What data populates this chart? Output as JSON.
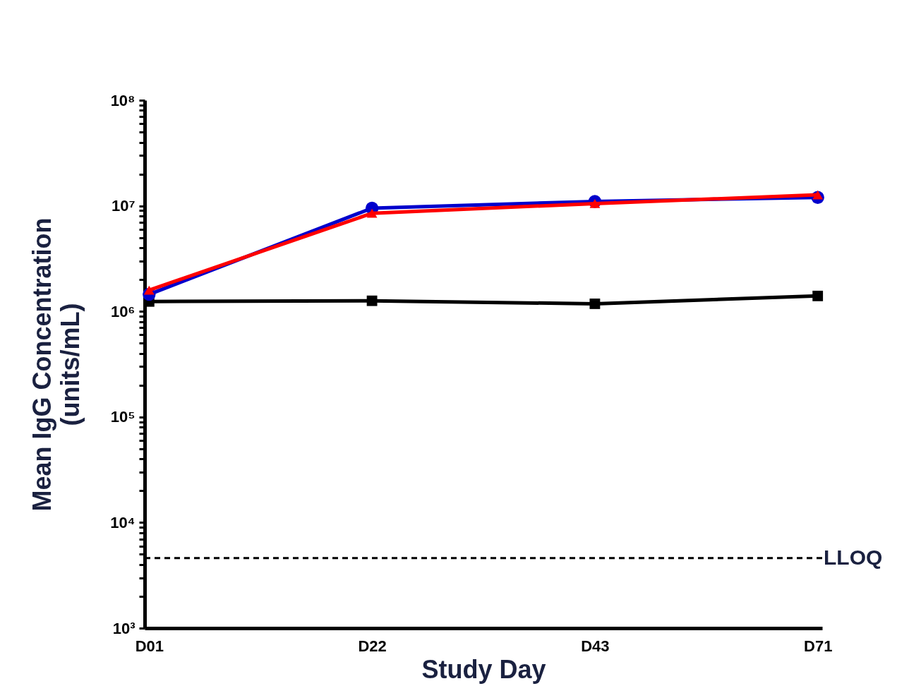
{
  "chart_data": {
    "type": "line",
    "xlabel": "Study Day",
    "ylabel": "Mean IgG Concentration\n(units/mL)",
    "categories": [
      "D01",
      "D22",
      "D43",
      "D71"
    ],
    "log": true,
    "ylim": [
      1000,
      100000000
    ],
    "yticks": [
      {
        "value": 1000,
        "label": "10³"
      },
      {
        "value": 2000,
        "label": null
      },
      {
        "value": 3000,
        "label": null
      },
      {
        "value": 4000,
        "label": null
      },
      {
        "value": 5000,
        "label": null
      },
      {
        "value": 6000,
        "label": null
      },
      {
        "value": 7000,
        "label": null
      },
      {
        "value": 8000,
        "label": null
      },
      {
        "value": 9000,
        "label": null
      },
      {
        "value": 10000,
        "label": "10⁴"
      },
      {
        "value": 20000,
        "label": null
      },
      {
        "value": 30000,
        "label": null
      },
      {
        "value": 40000,
        "label": null
      },
      {
        "value": 50000,
        "label": null
      },
      {
        "value": 60000,
        "label": null
      },
      {
        "value": 70000,
        "label": null
      },
      {
        "value": 80000,
        "label": null
      },
      {
        "value": 90000,
        "label": null
      },
      {
        "value": 100000,
        "label": "10⁵"
      },
      {
        "value": 200000,
        "label": null
      },
      {
        "value": 300000,
        "label": null
      },
      {
        "value": 400000,
        "label": null
      },
      {
        "value": 500000,
        "label": null
      },
      {
        "value": 600000,
        "label": null
      },
      {
        "value": 700000,
        "label": null
      },
      {
        "value": 800000,
        "label": null
      },
      {
        "value": 900000,
        "label": null
      },
      {
        "value": 1000000,
        "label": "10⁶"
      },
      {
        "value": 2000000,
        "label": null
      },
      {
        "value": 3000000,
        "label": null
      },
      {
        "value": 4000000,
        "label": null
      },
      {
        "value": 5000000,
        "label": null
      },
      {
        "value": 6000000,
        "label": null
      },
      {
        "value": 7000000,
        "label": null
      },
      {
        "value": 8000000,
        "label": null
      },
      {
        "value": 9000000,
        "label": null
      },
      {
        "value": 10000000,
        "label": "10⁷"
      },
      {
        "value": 20000000,
        "label": null
      },
      {
        "value": 30000000,
        "label": null
      },
      {
        "value": 40000000,
        "label": null
      },
      {
        "value": 50000000,
        "label": null
      },
      {
        "value": 60000000,
        "label": null
      },
      {
        "value": 70000000,
        "label": null
      },
      {
        "value": 80000000,
        "label": null
      },
      {
        "value": 90000000,
        "label": null
      },
      {
        "value": 100000000,
        "label": "10⁸"
      }
    ],
    "grid": false,
    "series": [
      {
        "color": "#000000",
        "marker": "square",
        "values": [
          1240000,
          1260000,
          1180000,
          1400000
        ]
      },
      {
        "color": "#0000cc",
        "marker": "circle",
        "values": [
          1450000,
          9500000,
          11000000,
          12000000
        ]
      },
      {
        "color": "#ff0000",
        "marker": "triangle",
        "values": [
          1590000,
          8500000,
          10500000,
          12700000
        ]
      }
    ],
    "ref_lines": [
      {
        "axis": "y",
        "value": 4600,
        "label": "LLOQ",
        "line_style": "dashed",
        "color": "#000000"
      }
    ]
  }
}
